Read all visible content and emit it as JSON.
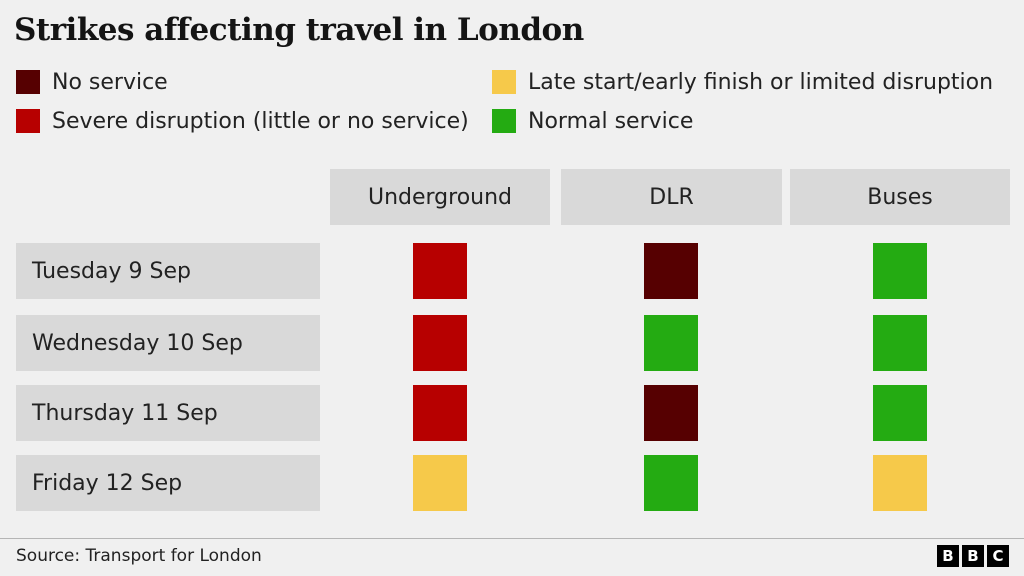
{
  "chart_data": {
    "type": "table",
    "title": "Strikes affecting travel in London",
    "legend": [
      {
        "key": "no_service",
        "label": "No service",
        "color": "#560001"
      },
      {
        "key": "severe",
        "label": "Severe disruption (little or no service)",
        "color": "#b70000"
      },
      {
        "key": "limited",
        "label": "Late start/early finish or limited disruption",
        "color": "#f6c94a"
      },
      {
        "key": "normal",
        "label": "Normal service",
        "color": "#24ab12"
      }
    ],
    "columns": [
      "Underground",
      "DLR",
      "Buses"
    ],
    "rows": [
      {
        "label": "Tuesday 9 Sep",
        "values": [
          "severe",
          "no_service",
          "normal"
        ]
      },
      {
        "label": "Wednesday 10 Sep",
        "values": [
          "severe",
          "normal",
          "normal"
        ]
      },
      {
        "label": "Thursday 11 Sep",
        "values": [
          "severe",
          "no_service",
          "normal"
        ]
      },
      {
        "label": "Friday 12 Sep",
        "values": [
          "limited",
          "normal",
          "limited"
        ]
      }
    ]
  },
  "footer": {
    "source": "Source: Transport for London",
    "logo_letters": [
      "B",
      "B",
      "C"
    ]
  }
}
